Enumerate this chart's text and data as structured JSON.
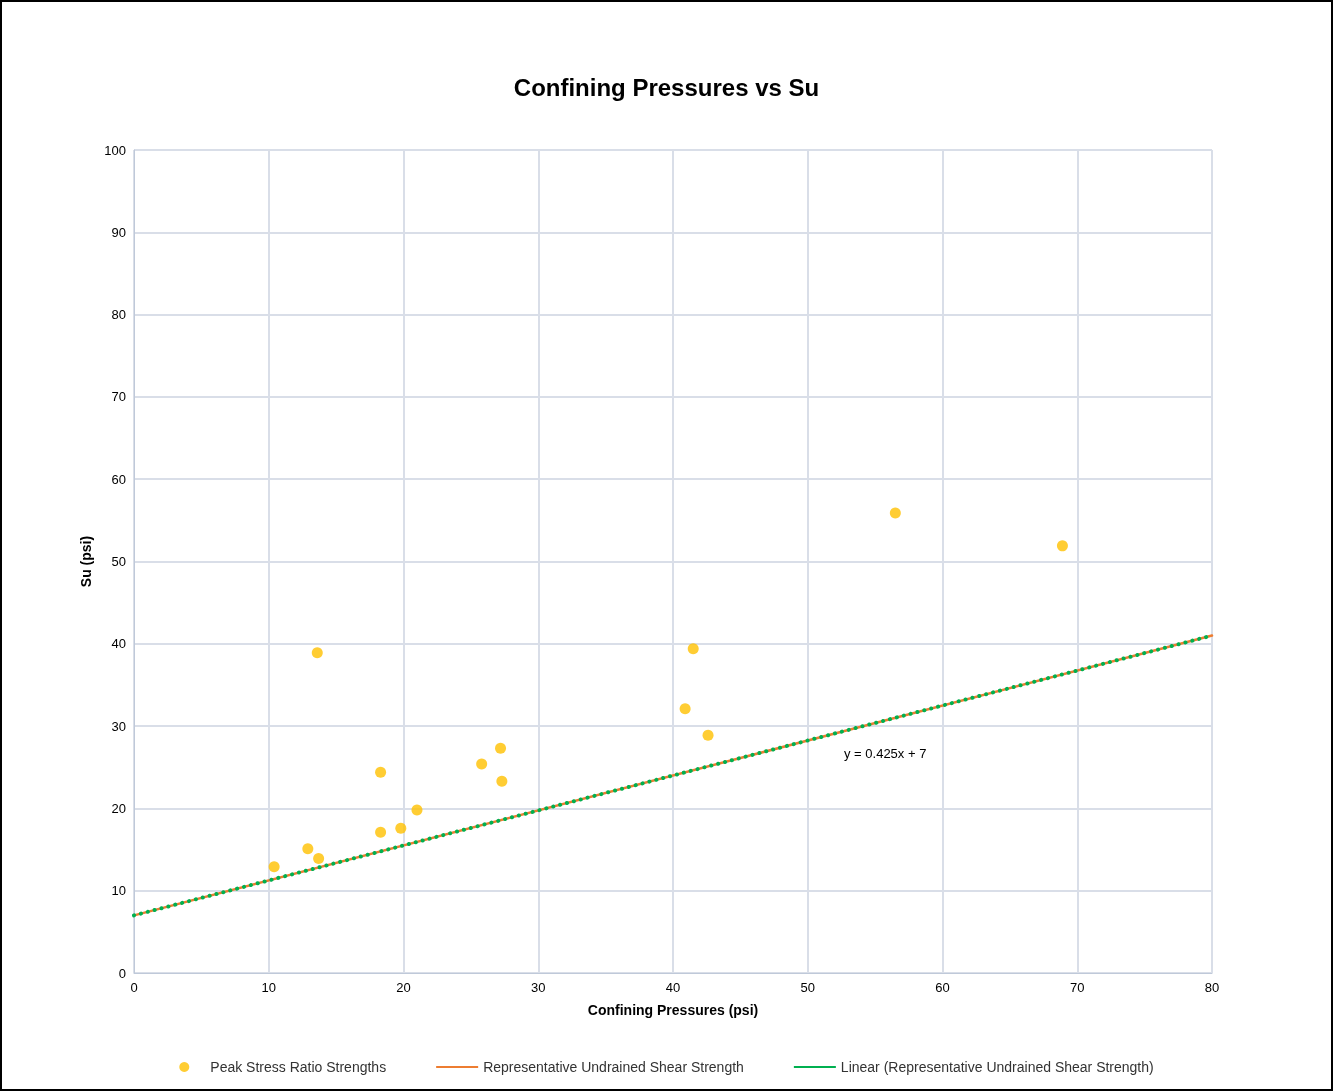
{
  "chart_data": {
    "type": "scatter",
    "title": "Confining Pressures vs Su",
    "xlabel": "Confining Pressures (psi)",
    "ylabel": "Su (psi)",
    "xlim": [
      0,
      80
    ],
    "xticks": [
      0,
      10,
      20,
      30,
      40,
      50,
      60,
      70,
      80
    ],
    "ylim": [
      0,
      100
    ],
    "yticks": [
      0,
      10,
      20,
      30,
      40,
      50,
      60,
      70,
      80,
      90,
      100
    ],
    "grid": true,
    "legend": "bottom",
    "series": [
      {
        "name": "Peak Stress Ratio Strengths",
        "color": "#ffc000",
        "marker": "circle",
        "x": [
          10.4,
          12.9,
          13.7,
          13.6,
          18.3,
          18.3,
          19.8,
          21.0,
          25.8,
          27.2,
          27.3,
          40.9,
          41.5,
          42.6,
          56.5,
          68.9
        ],
        "values": [
          12.9,
          15.1,
          13.9,
          38.9,
          24.4,
          17.1,
          17.6,
          19.8,
          25.4,
          27.3,
          23.3,
          32.1,
          39.4,
          28.9,
          55.9,
          51.9
        ]
      },
      {
        "name": "Representative Undrained Shear Strength",
        "type": "line",
        "color": "#ed7d31",
        "marker": "none",
        "line_style": "solid",
        "x": [
          0,
          80
        ],
        "values": [
          7,
          41
        ]
      },
      {
        "name": "Linear (Representative Undrained Shear Strength)",
        "type": "line",
        "color": "#00b050",
        "marker": "none",
        "line_style": "dotted",
        "x": [
          0,
          80
        ],
        "values": [
          7,
          41
        ]
      }
    ],
    "annotations": [
      "y = 0.425x + 7"
    ]
  }
}
